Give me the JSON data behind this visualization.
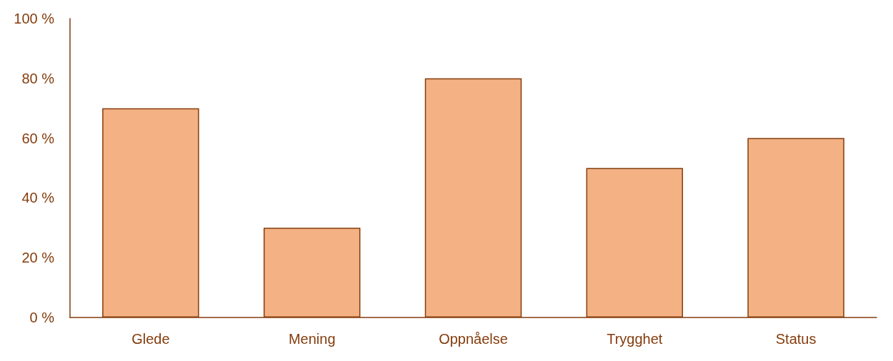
{
  "chart_data": {
    "type": "bar",
    "categories": [
      "Glede",
      "Mening",
      "Oppnåelse",
      "Trygghet",
      "Status"
    ],
    "values": [
      70,
      30,
      80,
      50,
      60
    ],
    "color": "#f4b183",
    "ylim": [
      0,
      100
    ],
    "yticks": [
      {
        "value": 0,
        "label": "0 %"
      },
      {
        "value": 20,
        "label": "20 %"
      },
      {
        "value": 40,
        "label": "40 %"
      },
      {
        "value": 60,
        "label": "60 %"
      },
      {
        "value": 80,
        "label": "80 %"
      },
      {
        "value": 100,
        "label": "100 %"
      }
    ],
    "grid": false
  }
}
